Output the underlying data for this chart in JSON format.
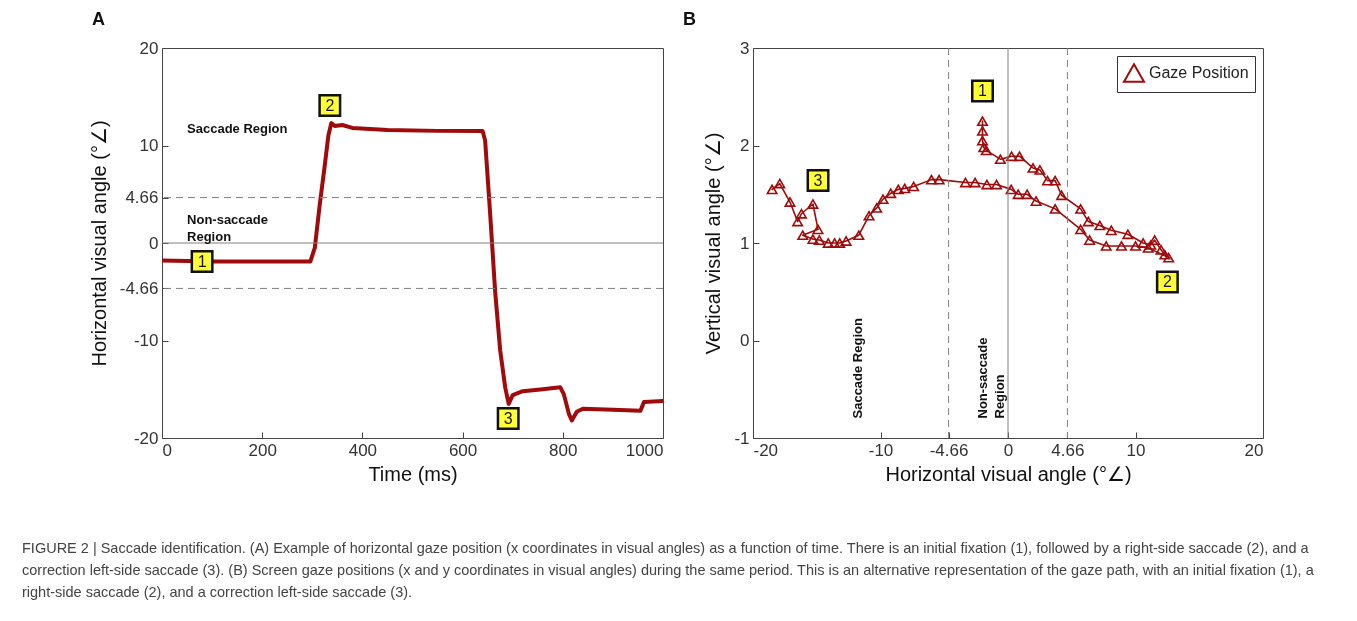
{
  "chart_data": [
    {
      "type": "line",
      "title": "A",
      "xlabel": "Time (ms)",
      "ylabel": "Horizontal visual angle (°∠)",
      "xlim": [
        0,
        1000
      ],
      "ylim": [
        -20,
        20
      ],
      "xticks": [
        0,
        200,
        400,
        600,
        800,
        1000
      ],
      "yticks": [
        -20,
        -10,
        -4.66,
        0,
        4.66,
        10,
        20
      ],
      "grid": false,
      "marker": "none",
      "line_style": "solid",
      "ref_lines": [
        {
          "axis": "y",
          "value": 4.66,
          "line_style": "dashed",
          "color": "#808080"
        },
        {
          "axis": "y",
          "value": -4.66,
          "line_style": "dashed",
          "color": "#808080"
        },
        {
          "axis": "y",
          "value": 0,
          "line_style": "solid",
          "color": "#808080"
        }
      ],
      "annotations": [
        {
          "text": "1",
          "x": 80,
          "y": -1.9
        },
        {
          "text": "2",
          "x": 335,
          "y": 14.1
        },
        {
          "text": "3",
          "x": 691,
          "y": -18
        },
        "Saccade Region",
        "Non-saccade\nRegion"
      ],
      "series": [
        {
          "color": "#a00a0a",
          "x": [
            0,
            100,
            200,
            296,
            305,
            315,
            325,
            332,
            338,
            345,
            360,
            380,
            450,
            550,
            640,
            645,
            655,
            665,
            675,
            685,
            692,
            700,
            720,
            760,
            795,
            802,
            812,
            818,
            828,
            840,
            900,
            955,
            962,
            1000
          ],
          "values": [
            -1.8,
            -1.9,
            -1.9,
            -1.9,
            -0.5,
            4,
            8,
            11,
            12.3,
            12,
            12.1,
            11.8,
            11.6,
            11.5,
            11.5,
            10.5,
            3,
            -5,
            -11,
            -14.8,
            -16.5,
            -15.6,
            -15.2,
            -15,
            -14.8,
            -15.5,
            -17.5,
            -18.2,
            -17.3,
            -17,
            -17.1,
            -17.2,
            -16.3,
            -16.2
          ]
        }
      ]
    },
    {
      "type": "line",
      "title": "B",
      "xlabel": "Horizontal visual angle (°∠)",
      "ylabel": "Vertical visual angle (°∠)",
      "xlim": [
        -20,
        20
      ],
      "ylim": [
        -1,
        3
      ],
      "xticks": [
        -20,
        -10,
        -4.66,
        0,
        4.66,
        10,
        20
      ],
      "yticks": [
        -1,
        0,
        1,
        2,
        3
      ],
      "grid": false,
      "legend": "top right",
      "marker": "triangle",
      "line_style": "solid",
      "ref_lines": [
        {
          "axis": "x",
          "value": -4.66,
          "line_style": "dashed",
          "color": "#808080"
        },
        {
          "axis": "x",
          "value": 0,
          "line_style": "solid",
          "color": "#808080"
        },
        {
          "axis": "x",
          "value": 4.66,
          "line_style": "dashed",
          "color": "#808080"
        }
      ],
      "annotations": [
        {
          "text": "1",
          "x": -2,
          "y": 2.56
        },
        {
          "text": "2",
          "x": 12.5,
          "y": 0.6
        },
        {
          "text": "3",
          "x": -14.9,
          "y": 1.64
        },
        "Saccade Region",
        "Non-saccade\nRegion",
        "FIGURE 2 | Saccade identification. (A) Example of horizontal gaze position (x coordinates in visual angles) as a function of time. There is an initial fixation (1), followed by a right-side saccade (2), and a correction left-side saccade (3). (B) Screen gaze positions (x and y coordinates in visual angles) during the same period. This is an alternative representation of the gaze path, with an initial fixation (1), a right-side saccade (2), and a correction left-side saccade (3)."
      ],
      "series": [
        {
          "name": "Gaze Position",
          "color": "#a00a0a",
          "x": [
            -2,
            -2,
            -2,
            -1.9,
            -1.7,
            -0.6,
            0.28,
            0.9,
            1.96,
            2.5,
            3.1,
            3.7,
            4.2,
            5.7,
            6.3,
            7.2,
            8.1,
            9.4,
            10.6,
            11.2,
            11.5,
            12,
            12.3,
            12.6,
            11,
            10,
            8.9,
            7.7,
            6.4,
            5.7,
            3.7,
            2.2,
            1.5,
            0.8,
            0.25,
            -0.9,
            -1.66,
            -2.58,
            -3.34,
            -5.4,
            -6,
            -7.4,
            -8.1,
            -8.6,
            -9.2,
            -9.8,
            -10.3,
            -10.9,
            -11.7,
            -12.7,
            -13.2,
            -13.6,
            -14.1,
            -14.8,
            -15.3,
            -16.1,
            -14.9,
            -15.3,
            -16.2,
            -16.5,
            -17.1,
            -17.9,
            -18.5
          ],
          "values": [
            2.25,
            2.15,
            2.05,
            1.98,
            1.95,
            1.86,
            1.89,
            1.89,
            1.77,
            1.75,
            1.64,
            1.64,
            1.49,
            1.35,
            1.22,
            1.18,
            1.13,
            1.09,
            1,
            0.98,
            1.03,
            0.93,
            0.88,
            0.85,
            0.95,
            0.97,
            0.97,
            0.97,
            1.03,
            1.14,
            1.35,
            1.43,
            1.5,
            1.5,
            1.55,
            1.6,
            1.6,
            1.62,
            1.62,
            1.65,
            1.65,
            1.58,
            1.56,
            1.55,
            1.51,
            1.45,
            1.36,
            1.28,
            1.08,
            1.02,
            1,
            1,
            1,
            1.03,
            1.04,
            1.08,
            1.14,
            1.4,
            1.3,
            1.22,
            1.42,
            1.61,
            1.55
          ]
        }
      ]
    }
  ]
}
